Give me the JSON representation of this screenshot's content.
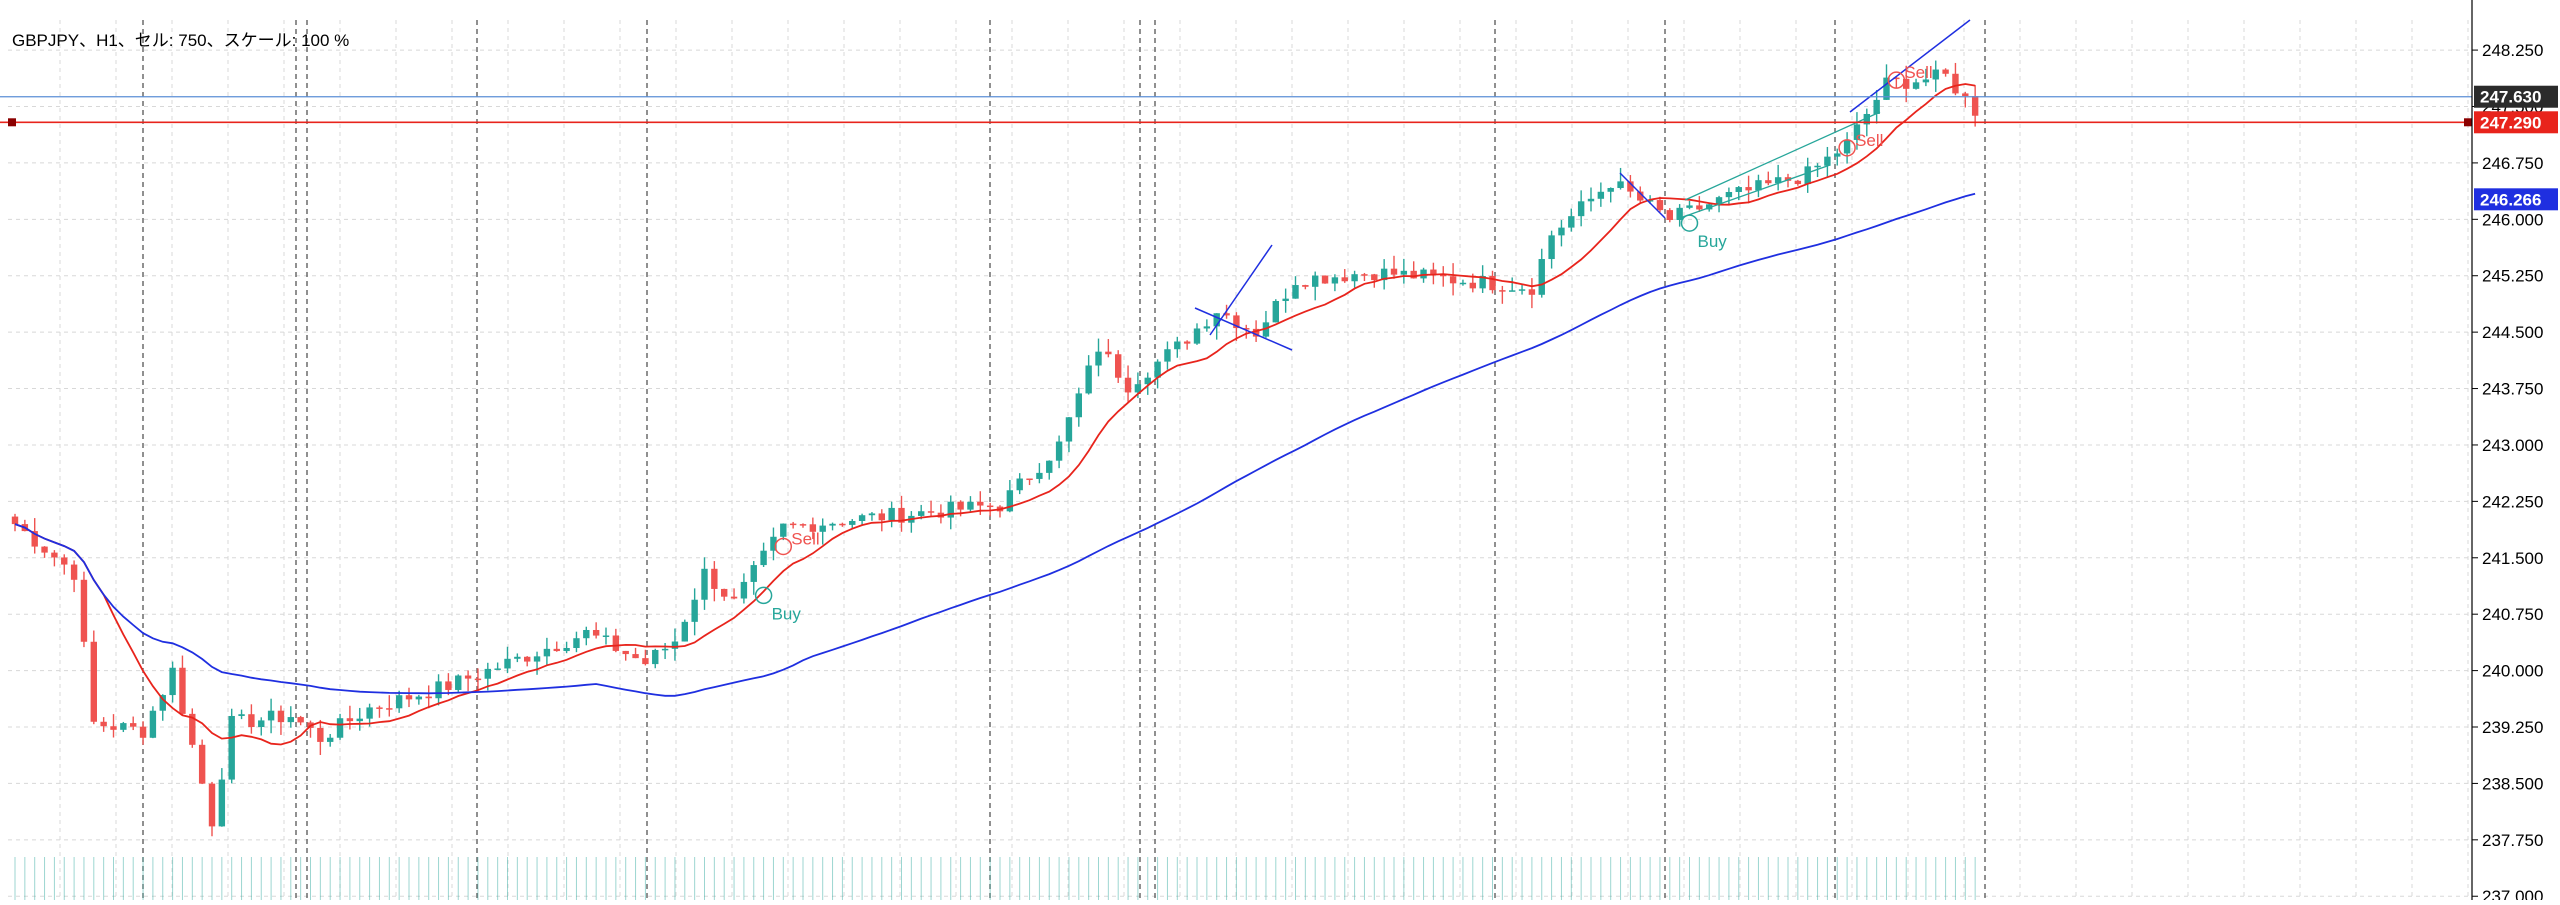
{
  "header": {
    "info": "GBPJPY、H1、セル: 750、スケール: 100 %"
  },
  "colors": {
    "bull": "#26a69a",
    "bear": "#ef5350",
    "ma_fast": "#e8241c",
    "ma_slow": "#1f2fe0",
    "trend": "#1f2fe0",
    "channel": "#26a69a",
    "bid_line": "#e8241c",
    "ask_line": "#5b8fd6",
    "grid": "#d8d8d8",
    "period_sep": "#555555"
  },
  "price_lines": {
    "ask": {
      "value": 247.63,
      "label": "247.630",
      "bg": "#2b2b2b"
    },
    "bid": {
      "value": 247.29,
      "label": "247.290",
      "bg": "#e8241c"
    },
    "ma": {
      "value": 246.266,
      "label": "246.266",
      "bg": "#1f2fe0"
    }
  },
  "trade_marks": [
    {
      "text": "Sell",
      "price": 241.65,
      "bar": 78,
      "color": "#ef5350"
    },
    {
      "text": "Buy",
      "price": 241.0,
      "bar": 76,
      "color": "#26a69a"
    },
    {
      "text": "Buy",
      "price": 245.95,
      "bar": 170,
      "color": "#26a69a"
    },
    {
      "text": "Sell",
      "price": 246.95,
      "bar": 186,
      "color": "#ef5350"
    },
    {
      "text": "Sell",
      "price": 247.85,
      "bar": 191,
      "color": "#ef5350"
    }
  ],
  "chart_data": {
    "type": "candlestick",
    "symbol": "GBPJPY",
    "timeframe": "H1",
    "ylim": [
      236.95,
      248.65
    ],
    "y_ticks": [
      "248.250",
      "247.500",
      "246.750",
      "246.000",
      "245.250",
      "244.500",
      "243.750",
      "243.000",
      "242.250",
      "241.500",
      "240.750",
      "240.000",
      "239.250",
      "238.500",
      "237.750",
      "237.000"
    ],
    "key_points": [
      [
        0,
        241.95
      ],
      [
        6,
        241.3
      ],
      [
        8,
        239.3
      ],
      [
        13,
        239.2
      ],
      [
        16,
        240.0
      ],
      [
        20,
        238.0
      ],
      [
        22,
        239.3
      ],
      [
        28,
        239.4
      ],
      [
        31,
        239.1
      ],
      [
        36,
        239.5
      ],
      [
        44,
        239.8
      ],
      [
        52,
        240.2
      ],
      [
        58,
        240.5
      ],
      [
        64,
        240.1
      ],
      [
        67,
        240.4
      ],
      [
        70,
        241.3
      ],
      [
        73,
        240.9
      ],
      [
        78,
        241.9
      ],
      [
        84,
        242.0
      ],
      [
        92,
        242.1
      ],
      [
        100,
        242.2
      ],
      [
        106,
        243.0
      ],
      [
        110,
        244.3
      ],
      [
        113,
        243.8
      ],
      [
        118,
        244.3
      ],
      [
        122,
        244.8
      ],
      [
        126,
        244.5
      ],
      [
        130,
        245.2
      ],
      [
        138,
        245.3
      ],
      [
        146,
        245.2
      ],
      [
        154,
        245.1
      ],
      [
        156,
        245.8
      ],
      [
        162,
        246.5
      ],
      [
        168,
        246.0
      ],
      [
        174,
        246.3
      ],
      [
        182,
        246.6
      ],
      [
        186,
        247.0
      ],
      [
        190,
        247.8
      ],
      [
        196,
        247.9
      ],
      [
        199,
        247.45
      ]
    ],
    "ma_fast": "SMA short (red)",
    "ma_slow": "SMA long (blue)"
  }
}
